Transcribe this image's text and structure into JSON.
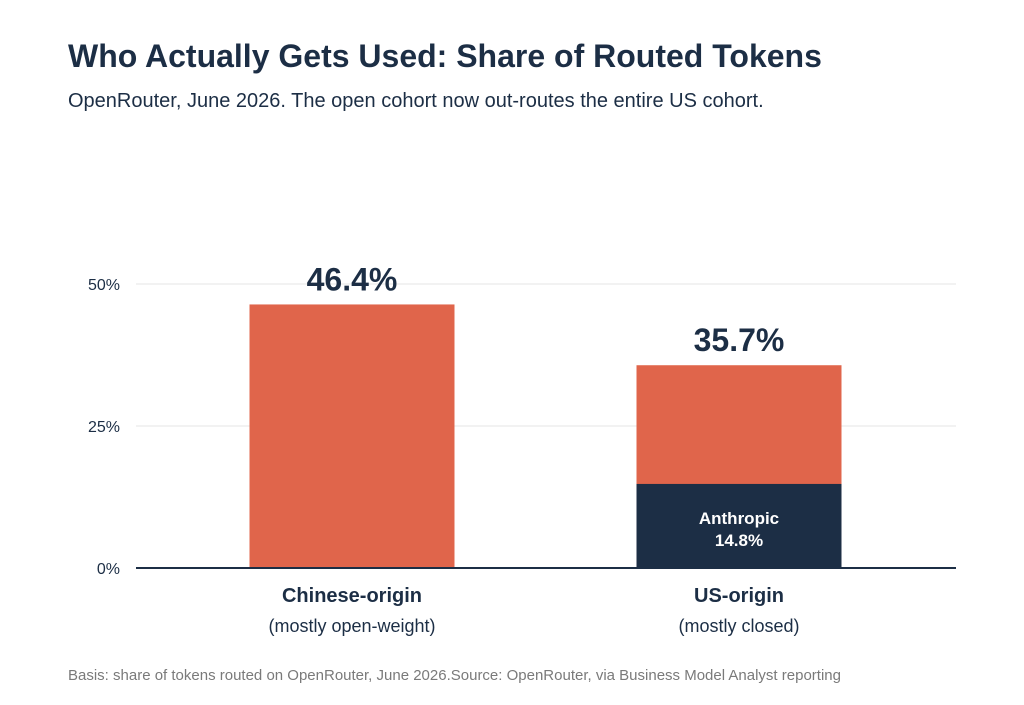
{
  "title": "Who Actually Gets Used: Share of Routed Tokens",
  "subtitle": "OpenRouter, June 2026. The open cohort now out-routes the entire US cohort.",
  "footer": {
    "basis": "Basis: share of tokens routed on OpenRouter, June 2026.",
    "source": "Source: OpenRouter, via Business Model Analyst reporting"
  },
  "colors": {
    "accent": "#e0654b",
    "dark": "#1c2e45",
    "grid": "#e6e6e6",
    "footer": "#7a7a7a"
  },
  "chart_data": {
    "type": "bar",
    "ylim": [
      0,
      50
    ],
    "yticks": [
      {
        "value": 0,
        "label": "0%"
      },
      {
        "value": 25,
        "label": "25%"
      },
      {
        "value": 50,
        "label": "50%"
      }
    ],
    "grid": true,
    "categories": [
      {
        "label": "Chinese-origin",
        "sublabel": "(mostly open-weight)"
      },
      {
        "label": "US-origin",
        "sublabel": "(mostly closed)"
      }
    ],
    "values": [
      46.4,
      35.7
    ],
    "value_labels": [
      "46.4%",
      "35.7%"
    ],
    "segments": [
      {
        "category_index": 1,
        "name": "Anthropic",
        "value": 14.8,
        "label": "14.8%"
      }
    ]
  }
}
